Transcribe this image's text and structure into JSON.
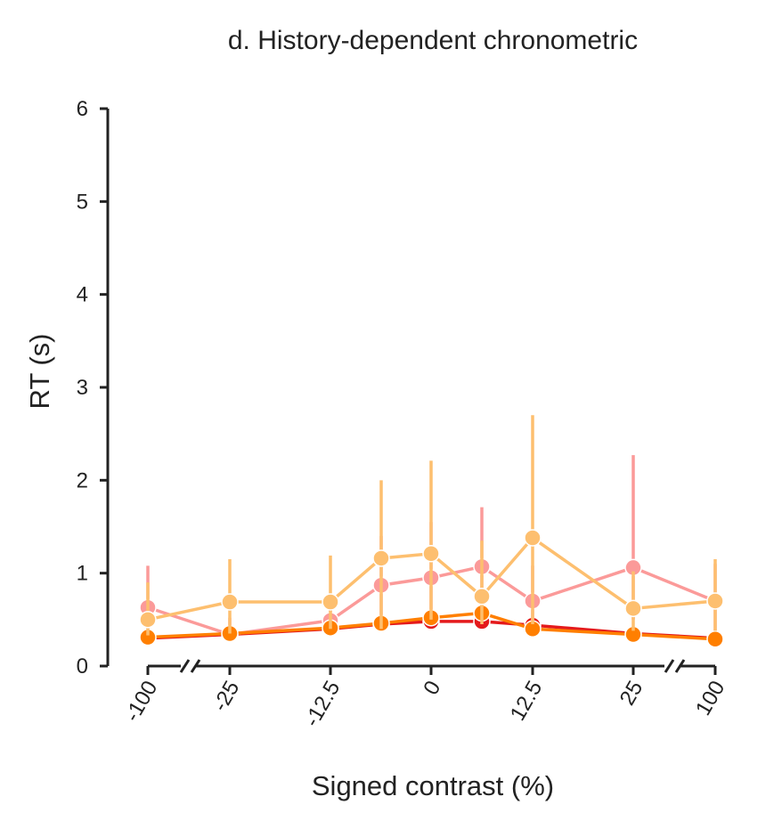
{
  "chart_data": {
    "type": "line",
    "title": "d. History-dependent chronometric",
    "xlabel": "Signed contrast (%)",
    "ylabel": "RT (s)",
    "ylim": [
      0,
      6
    ],
    "yticks": [
      "0",
      "1",
      "2",
      "3",
      "4",
      "5",
      "6"
    ],
    "x_tick_labels": [
      "-100",
      "-25",
      "-12.5",
      "0",
      "12.5",
      "25",
      "100"
    ],
    "x_categories": [
      "-100",
      "-25",
      "-12.5",
      "-6.25",
      "0",
      "6.25",
      "12.5",
      "25",
      "100"
    ],
    "axis_breaks": [
      "between -100 and -25",
      "between 25 and 100"
    ],
    "grid": false,
    "series": [
      {
        "color": "#e41a1c",
        "values": [
          0.3,
          0.34,
          0.4,
          0.45,
          0.48,
          0.48,
          0.44,
          0.35,
          0.3
        ],
        "err_low": [
          0.25,
          0.3,
          0.36,
          0.41,
          0.43,
          0.42,
          0.39,
          0.31,
          0.26
        ],
        "err_high": [
          0.36,
          0.39,
          0.46,
          0.51,
          0.55,
          0.56,
          0.51,
          0.4,
          0.34
        ]
      },
      {
        "color": "#fb9a99",
        "values": [
          0.63,
          0.34,
          0.49,
          0.87,
          0.95,
          1.07,
          0.7,
          1.06,
          0.7
        ],
        "err_low": [
          0.35,
          0.28,
          0.38,
          0.55,
          0.55,
          0.62,
          0.47,
          0.5,
          0.38
        ],
        "err_high": [
          1.08,
          0.52,
          0.73,
          1.4,
          1.55,
          1.71,
          1.08,
          2.27,
          1.1
        ]
      },
      {
        "color": "#ff7f00",
        "values": [
          0.31,
          0.35,
          0.41,
          0.46,
          0.52,
          0.57,
          0.4,
          0.34,
          0.29
        ],
        "err_low": [
          0.26,
          0.3,
          0.37,
          0.41,
          0.45,
          0.49,
          0.35,
          0.3,
          0.25
        ],
        "err_high": [
          0.37,
          0.41,
          0.46,
          0.53,
          0.61,
          0.66,
          0.46,
          0.39,
          0.33
        ]
      },
      {
        "color": "#fdbf6f",
        "values": [
          0.5,
          0.69,
          0.69,
          1.16,
          1.21,
          0.75,
          1.38,
          0.62,
          0.7
        ],
        "err_low": [
          0.33,
          0.35,
          0.4,
          0.4,
          0.5,
          0.45,
          0.45,
          0.38,
          0.38
        ],
        "err_high": [
          0.9,
          1.15,
          1.19,
          2.0,
          2.21,
          1.35,
          2.7,
          1.02,
          1.15
        ]
      }
    ]
  }
}
